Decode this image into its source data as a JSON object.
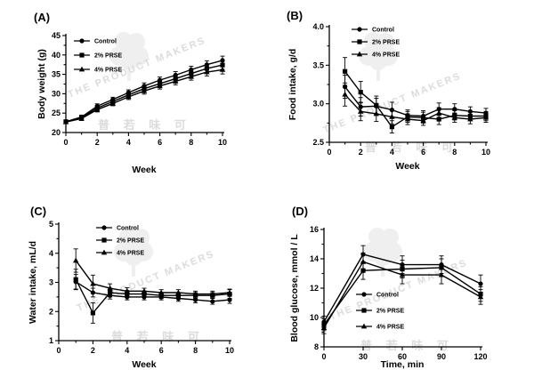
{
  "watermark": {
    "text": "THE PRODUCT MAKERS",
    "cn": "普 若 味 可"
  },
  "chart_data": [
    {
      "panel": "(A)",
      "type": "line",
      "xlabel": "Week",
      "ylabel": "Body weight (g)",
      "xlim": [
        0,
        10
      ],
      "ylim": [
        20,
        45
      ],
      "xticks": [
        0,
        2,
        4,
        6,
        8,
        10
      ],
      "yticks": [
        20,
        25,
        30,
        35,
        40,
        45
      ],
      "legend": "top-left",
      "x": [
        0,
        1,
        2,
        3,
        4,
        5,
        6,
        7,
        8,
        9,
        10
      ],
      "series": [
        {
          "name": "Control",
          "marker": "circle",
          "values": [
            22.8,
            24.0,
            26.8,
            28.5,
            30.3,
            32.0,
            33.5,
            34.8,
            36.2,
            37.5,
            38.6
          ],
          "errors": [
            0.4,
            0.5,
            0.6,
            0.6,
            0.7,
            0.8,
            0.8,
            0.9,
            0.9,
            1.0,
            1.1
          ]
        },
        {
          "name": "2% PRSE",
          "marker": "square",
          "values": [
            22.8,
            23.8,
            26.3,
            28.0,
            29.7,
            31.3,
            32.6,
            33.9,
            35.2,
            36.5,
            37.4
          ],
          "errors": [
            0.4,
            0.5,
            0.6,
            0.6,
            0.7,
            0.8,
            0.8,
            0.9,
            0.9,
            1.0,
            1.1
          ]
        },
        {
          "name": "4% PRSE",
          "marker": "triangle",
          "values": [
            22.7,
            23.6,
            25.9,
            27.5,
            29.2,
            30.7,
            32.0,
            33.2,
            34.4,
            35.6,
            36.2
          ],
          "errors": [
            0.4,
            0.5,
            0.6,
            0.6,
            0.7,
            0.8,
            0.8,
            0.9,
            0.9,
            1.0,
            1.1
          ]
        }
      ]
    },
    {
      "panel": "(B)",
      "type": "line",
      "xlabel": "Week",
      "ylabel": "Food intake, g/d",
      "xlim": [
        0,
        10
      ],
      "ylim": [
        2.5,
        4.0
      ],
      "xticks": [
        0,
        2,
        4,
        6,
        8,
        10
      ],
      "yticks": [
        2.5,
        3.0,
        3.5,
        4.0
      ],
      "legend": "top-center",
      "x": [
        1,
        2,
        3,
        4,
        5,
        6,
        7,
        8,
        9,
        10
      ],
      "series": [
        {
          "name": "Control",
          "marker": "circle",
          "values": [
            3.22,
            2.96,
            2.97,
            2.92,
            2.85,
            2.84,
            2.93,
            2.93,
            2.9,
            2.88
          ],
          "errors": [
            0.15,
            0.12,
            0.1,
            0.1,
            0.07,
            0.07,
            0.08,
            0.07,
            0.06,
            0.06
          ]
        },
        {
          "name": "2% PRSE",
          "marker": "square",
          "values": [
            3.42,
            3.15,
            2.98,
            2.7,
            2.83,
            2.82,
            2.8,
            2.85,
            2.84,
            2.84
          ],
          "errors": [
            0.18,
            0.14,
            0.12,
            0.08,
            0.07,
            0.07,
            0.07,
            0.06,
            0.06,
            0.06
          ]
        },
        {
          "name": "4% PRSE",
          "marker": "triangle",
          "values": [
            3.12,
            2.9,
            2.87,
            2.83,
            2.8,
            2.78,
            2.88,
            2.82,
            2.8,
            2.82
          ],
          "errors": [
            0.15,
            0.12,
            0.1,
            0.09,
            0.07,
            0.06,
            0.07,
            0.06,
            0.06,
            0.06
          ]
        }
      ]
    },
    {
      "panel": "(C)",
      "type": "line",
      "xlabel": "Week",
      "ylabel": "Water intake, mL/d",
      "xlim": [
        0,
        10
      ],
      "ylim": [
        1,
        5
      ],
      "xticks": [
        0,
        2,
        4,
        6,
        8,
        10
      ],
      "yticks": [
        1,
        2,
        3,
        4,
        5
      ],
      "legend": "top-center",
      "x": [
        1,
        2,
        3,
        4,
        5,
        6,
        7,
        8,
        9,
        10
      ],
      "series": [
        {
          "name": "Control",
          "marker": "circle",
          "values": [
            3.02,
            2.65,
            2.55,
            2.5,
            2.5,
            2.5,
            2.45,
            2.4,
            2.35,
            2.4
          ],
          "errors": [
            0.25,
            0.15,
            0.12,
            0.1,
            0.1,
            0.1,
            0.1,
            0.1,
            0.1,
            0.12
          ]
        },
        {
          "name": "2% PRSE",
          "marker": "square",
          "values": [
            3.1,
            1.95,
            2.65,
            2.6,
            2.6,
            2.55,
            2.55,
            2.55,
            2.55,
            2.6
          ],
          "errors": [
            0.35,
            0.35,
            0.15,
            0.12,
            0.1,
            0.1,
            0.1,
            0.1,
            0.1,
            0.15
          ]
        },
        {
          "name": "4% PRSE",
          "marker": "triangle",
          "values": [
            3.75,
            2.95,
            2.8,
            2.7,
            2.7,
            2.65,
            2.65,
            2.6,
            2.6,
            2.65
          ],
          "errors": [
            0.4,
            0.3,
            0.15,
            0.12,
            0.1,
            0.1,
            0.1,
            0.1,
            0.1,
            0.12
          ]
        }
      ]
    },
    {
      "panel": "(D)",
      "type": "line",
      "xlabel": "Time, min",
      "ylabel": "Blood glucose, mmol / L",
      "xlim": [
        0,
        120
      ],
      "ylim": [
        8,
        16
      ],
      "xticks": [
        0,
        30,
        60,
        90,
        120
      ],
      "yticks": [
        8,
        10,
        12,
        14,
        16
      ],
      "legend": "bottom-center",
      "x": [
        0,
        30,
        60,
        90,
        120
      ],
      "series": [
        {
          "name": "Control",
          "marker": "circle",
          "values": [
            9.7,
            14.3,
            13.6,
            13.6,
            12.3
          ],
          "errors": [
            0.4,
            0.6,
            0.6,
            0.6,
            0.6
          ]
        },
        {
          "name": "2% PRSE",
          "marker": "square",
          "values": [
            9.5,
            13.2,
            13.3,
            13.4,
            11.6
          ],
          "errors": [
            0.4,
            0.6,
            0.6,
            0.6,
            0.5
          ]
        },
        {
          "name": "4% PRSE",
          "marker": "triangle",
          "values": [
            9.3,
            13.8,
            12.9,
            12.9,
            11.4
          ],
          "errors": [
            0.4,
            0.6,
            0.6,
            0.6,
            0.5
          ]
        }
      ]
    }
  ]
}
